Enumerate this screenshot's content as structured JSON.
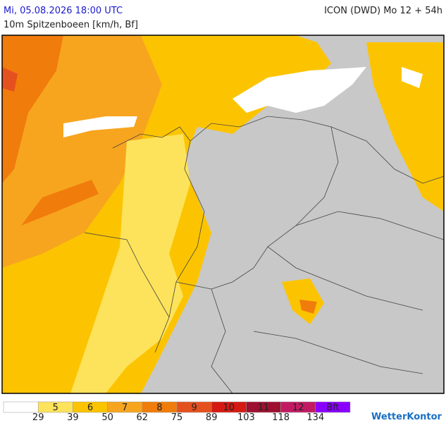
{
  "header": {
    "date": "Mi, 05.08.2026 18:00 UTC",
    "model": "ICON (DWD) Mo 12 + 54h",
    "parameter": "10m Spitzenboeen [km/h, Bf]"
  },
  "legend": {
    "labels": [
      "5",
      "6",
      "7",
      "8",
      "9",
      "10",
      "11",
      "12",
      "Bft"
    ],
    "colors": [
      "#ffffff",
      "#fde35b",
      "#fcc400",
      "#f7a51e",
      "#f07c0c",
      "#e5511e",
      "#d41a12",
      "#9e1030",
      "#c11a63",
      "#8a00ff"
    ],
    "thresholds": [
      29,
      39,
      50,
      62,
      75,
      89,
      103,
      118,
      134
    ]
  },
  "brand": "WetterKontor"
}
